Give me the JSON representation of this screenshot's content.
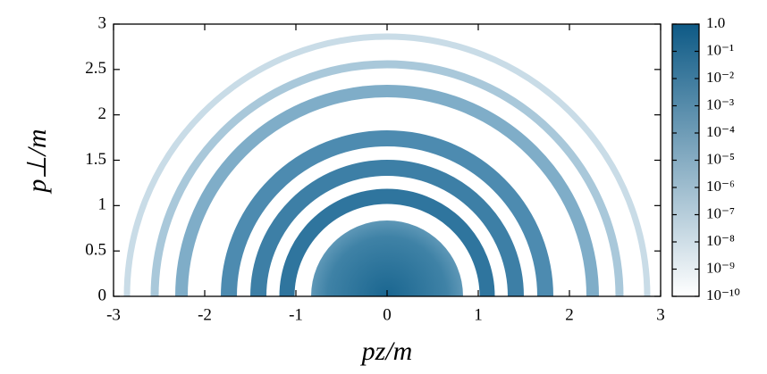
{
  "chart_data": {
    "type": "heatmap",
    "xlabel": "pz/m",
    "ylabel": "p⊥/m",
    "xlim": [
      -3,
      3
    ],
    "xticks": [
      -3,
      -2,
      -1,
      0,
      1,
      2,
      3
    ],
    "ylim": [
      0,
      3
    ],
    "yticks": [
      0,
      0.5,
      1,
      1.5,
      2,
      2.5,
      3
    ],
    "colorbar": {
      "log": true,
      "lim": [
        1e-10,
        1
      ],
      "colors": [
        "#ffffff",
        "#0e5a86"
      ],
      "ticks": [
        {
          "value": 1,
          "label": "1.0"
        },
        {
          "value": 0.1,
          "label": "10⁻¹"
        },
        {
          "value": 0.01,
          "label": "10⁻²"
        },
        {
          "value": 0.001,
          "label": "10⁻³"
        },
        {
          "value": 0.0001,
          "label": "10⁻⁴"
        },
        {
          "value": 1e-05,
          "label": "10⁻⁵"
        },
        {
          "value": 1e-06,
          "label": "10⁻⁶"
        },
        {
          "value": 1e-07,
          "label": "10⁻⁷"
        },
        {
          "value": 1e-08,
          "label": "10⁻⁸"
        },
        {
          "value": 1e-09,
          "label": "10⁻⁹"
        },
        {
          "value": 1e-10,
          "label": "10⁻¹⁰"
        }
      ]
    }
  }
}
